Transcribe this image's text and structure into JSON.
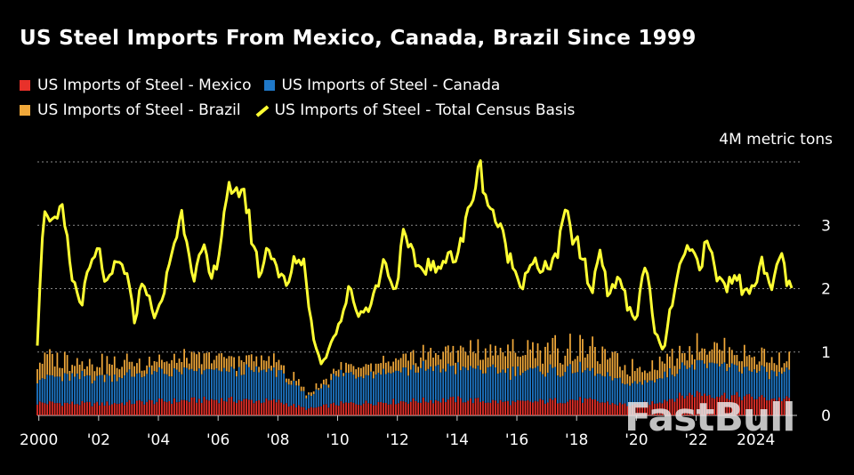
{
  "chart_data": {
    "type": "bar+line",
    "title": "US Steel Imports From Mexico, Canada, Brazil Since 1999",
    "unit_label": "4M metric tons",
    "ylim": [
      0,
      4
    ],
    "yticks": [
      "3",
      "2",
      "1",
      "0"
    ],
    "xticks": [
      "2000",
      "'02",
      "'04",
      "'06",
      "'08",
      "'10",
      "'12",
      "'14",
      "'16",
      "'18",
      "'20",
      "'22",
      "2024"
    ],
    "x_start": 1999.95,
    "x_end": 2025.2,
    "series": [
      {
        "name": "US Imports of Steel - Mexico",
        "kind": "stacked-bar",
        "color": "#e8312a",
        "anchors": [
          [
            1999.95,
            0.2
          ],
          [
            2002,
            0.18
          ],
          [
            2004,
            0.22
          ],
          [
            2006,
            0.25
          ],
          [
            2008,
            0.22
          ],
          [
            2009,
            0.1
          ],
          [
            2010,
            0.18
          ],
          [
            2012,
            0.22
          ],
          [
            2014,
            0.25
          ],
          [
            2016,
            0.2
          ],
          [
            2018,
            0.25
          ],
          [
            2020,
            0.15
          ],
          [
            2022,
            0.35
          ],
          [
            2024,
            0.28
          ],
          [
            2025.2,
            0.25
          ]
        ]
      },
      {
        "name": "US Imports of Steel - Canada",
        "kind": "stacked-bar",
        "color": "#1f78c8",
        "anchors": [
          [
            1999.95,
            0.4
          ],
          [
            2002,
            0.42
          ],
          [
            2004,
            0.45
          ],
          [
            2006,
            0.45
          ],
          [
            2008,
            0.48
          ],
          [
            2009,
            0.18
          ],
          [
            2010,
            0.45
          ],
          [
            2012,
            0.5
          ],
          [
            2014,
            0.5
          ],
          [
            2016,
            0.48
          ],
          [
            2018,
            0.48
          ],
          [
            2020,
            0.32
          ],
          [
            2022,
            0.5
          ],
          [
            2024,
            0.42
          ],
          [
            2025.2,
            0.38
          ]
        ]
      },
      {
        "name": "US Imports of Steel - Brazil",
        "kind": "stacked-bar",
        "color": "#f0a83a",
        "anchors": [
          [
            1999.95,
            0.3
          ],
          [
            2002,
            0.22
          ],
          [
            2004,
            0.18
          ],
          [
            2006,
            0.2
          ],
          [
            2008,
            0.15
          ],
          [
            2009,
            0.05
          ],
          [
            2010,
            0.1
          ],
          [
            2012,
            0.15
          ],
          [
            2014,
            0.28
          ],
          [
            2016,
            0.32
          ],
          [
            2018,
            0.35
          ],
          [
            2020,
            0.25
          ],
          [
            2022,
            0.28
          ],
          [
            2024,
            0.22
          ],
          [
            2025.2,
            0.2
          ]
        ]
      },
      {
        "name": "US Imports of Steel - Total Census Basis",
        "kind": "line",
        "color": "#ffff33",
        "points": [
          [
            1999.95,
            1.1
          ],
          [
            2000.1,
            2.9
          ],
          [
            2000.3,
            3.3
          ],
          [
            2000.5,
            2.95
          ],
          [
            2000.8,
            3.2
          ],
          [
            2001.1,
            2.2
          ],
          [
            2001.4,
            1.75
          ],
          [
            2001.7,
            2.3
          ],
          [
            2002.0,
            2.6
          ],
          [
            2002.3,
            2.0
          ],
          [
            2002.6,
            2.4
          ],
          [
            2002.9,
            2.3
          ],
          [
            2003.2,
            1.5
          ],
          [
            2003.5,
            2.2
          ],
          [
            2003.8,
            1.6
          ],
          [
            2004.1,
            1.7
          ],
          [
            2004.4,
            2.5
          ],
          [
            2004.8,
            3.2
          ],
          [
            2005.2,
            2.2
          ],
          [
            2005.5,
            2.6
          ],
          [
            2005.8,
            2.1
          ],
          [
            2006.1,
            2.8
          ],
          [
            2006.3,
            3.6
          ],
          [
            2006.5,
            3.3
          ],
          [
            2006.8,
            3.7
          ],
          [
            2007.1,
            2.9
          ],
          [
            2007.4,
            2.2
          ],
          [
            2007.7,
            2.7
          ],
          [
            2008.0,
            2.3
          ],
          [
            2008.3,
            2.0
          ],
          [
            2008.6,
            2.5
          ],
          [
            2008.9,
            2.4
          ],
          [
            2009.1,
            1.5
          ],
          [
            2009.3,
            1.0
          ],
          [
            2009.5,
            0.8
          ],
          [
            2009.8,
            1.2
          ],
          [
            2010.1,
            1.5
          ],
          [
            2010.4,
            2.0
          ],
          [
            2010.7,
            1.6
          ],
          [
            2011.0,
            1.7
          ],
          [
            2011.3,
            2.0
          ],
          [
            2011.6,
            2.5
          ],
          [
            2011.9,
            1.9
          ],
          [
            2012.2,
            2.8
          ],
          [
            2012.5,
            2.5
          ],
          [
            2012.8,
            2.3
          ],
          [
            2013.1,
            2.4
          ],
          [
            2013.4,
            2.2
          ],
          [
            2013.7,
            2.7
          ],
          [
            2013.9,
            2.4
          ],
          [
            2014.2,
            2.8
          ],
          [
            2014.5,
            3.5
          ],
          [
            2014.8,
            3.9
          ],
          [
            2015.0,
            3.4
          ],
          [
            2015.3,
            3.1
          ],
          [
            2015.6,
            2.7
          ],
          [
            2015.9,
            2.3
          ],
          [
            2016.2,
            2.1
          ],
          [
            2016.5,
            2.5
          ],
          [
            2016.8,
            2.2
          ],
          [
            2017.1,
            2.4
          ],
          [
            2017.4,
            2.6
          ],
          [
            2017.6,
            3.2
          ],
          [
            2017.9,
            2.8
          ],
          [
            2018.2,
            2.5
          ],
          [
            2018.5,
            1.9
          ],
          [
            2018.8,
            2.7
          ],
          [
            2019.1,
            1.8
          ],
          [
            2019.4,
            2.3
          ],
          [
            2019.7,
            1.7
          ],
          [
            2020.0,
            1.5
          ],
          [
            2020.3,
            2.5
          ],
          [
            2020.6,
            1.3
          ],
          [
            2020.9,
            1.0
          ],
          [
            2021.2,
            1.8
          ],
          [
            2021.5,
            2.4
          ],
          [
            2021.8,
            2.6
          ],
          [
            2022.1,
            2.4
          ],
          [
            2022.4,
            2.7
          ],
          [
            2022.7,
            2.2
          ],
          [
            2023.0,
            2.0
          ],
          [
            2023.3,
            2.3
          ],
          [
            2023.6,
            1.9
          ],
          [
            2023.9,
            2.1
          ],
          [
            2024.2,
            2.4
          ],
          [
            2024.5,
            1.9
          ],
          [
            2024.8,
            2.6
          ],
          [
            2025.0,
            2.2
          ],
          [
            2025.2,
            1.9
          ]
        ]
      }
    ],
    "grid": true,
    "legend_position": "top-left"
  },
  "watermark": "FastBull"
}
